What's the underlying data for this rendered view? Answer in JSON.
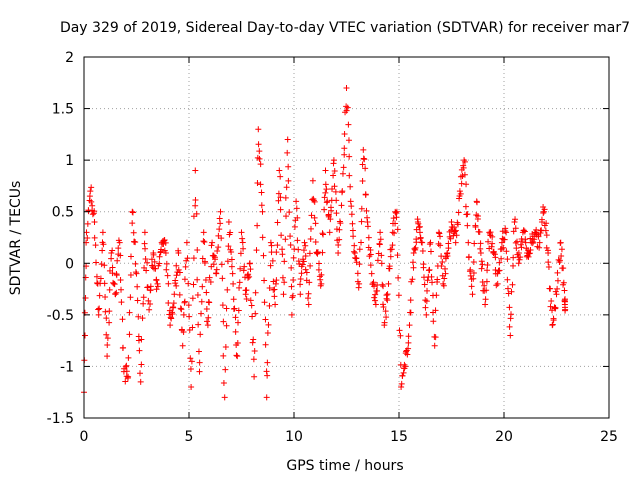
{
  "chart_data": {
    "type": "scatter",
    "title": "Day 329 of 2019, Sidereal Day-to-day VTEC variation (SDTVAR) for receiver mar7",
    "xlabel": "GPS time / hours",
    "ylabel": "SDTVAR / TECUs",
    "xlim": [
      0,
      25
    ],
    "ylim": [
      -1.5,
      2
    ],
    "xticks": [
      0,
      5,
      10,
      15,
      20,
      25
    ],
    "yticks": [
      -1.5,
      -1,
      -0.5,
      0,
      0.5,
      1,
      1.5,
      2
    ],
    "xtick_labels": [
      "0",
      "5",
      "10",
      "15",
      "20",
      "25"
    ],
    "ytick_labels": [
      "-1.5",
      "-1",
      "-0.5",
      "0",
      "0.5",
      "1",
      "1.5",
      "2"
    ],
    "grid": true,
    "marker": "+",
    "color": "#ff0000",
    "series": [
      {
        "name": "SDTVAR",
        "x": [
          0.0,
          0.1,
          0.3,
          0.5,
          0.7,
          0.9,
          1.1,
          1.3,
          1.5,
          1.7,
          1.9,
          2.1,
          2.3,
          2.5,
          2.7,
          2.9,
          3.1,
          3.3,
          3.5,
          3.7,
          3.9,
          4.1,
          4.3,
          4.5,
          4.7,
          4.9,
          5.1,
          5.3,
          5.5,
          5.7,
          5.9,
          6.1,
          6.3,
          6.5,
          6.7,
          6.9,
          7.1,
          7.3,
          7.5,
          7.7,
          7.9,
          8.1,
          8.3,
          8.5,
          8.7,
          8.9,
          9.1,
          9.3,
          9.5,
          9.7,
          9.9,
          10.1,
          10.3,
          10.5,
          10.7,
          10.9,
          11.1,
          11.3,
          11.5,
          11.7,
          11.9,
          12.1,
          12.3,
          12.5,
          12.7,
          12.9,
          13.1,
          13.3,
          13.5,
          13.7,
          13.9,
          14.1,
          14.3,
          14.5,
          14.7,
          14.9,
          15.1,
          15.3,
          15.5,
          15.7,
          15.9,
          16.1,
          16.3,
          16.5,
          16.7,
          16.9,
          17.1,
          17.3,
          17.5,
          17.7,
          17.9,
          18.1,
          18.3,
          18.5,
          18.7,
          18.9,
          19.1,
          19.3,
          19.5,
          19.7,
          19.9,
          20.1,
          20.3,
          20.5,
          20.7,
          20.9,
          21.1,
          21.3,
          21.5,
          21.7,
          21.9,
          22.1,
          22.3,
          22.5,
          22.7,
          22.9
        ],
        "y": [
          -1.25,
          0.2,
          0.7,
          0.4,
          -0.5,
          0.3,
          -0.9,
          0.1,
          -0.3,
          0.2,
          -1.05,
          -1.1,
          0.5,
          -0.1,
          -1.15,
          0.3,
          -0.45,
          0.1,
          -0.2,
          0.2,
          0.1,
          -0.6,
          -0.3,
          0.1,
          -0.8,
          0.2,
          -1.2,
          0.9,
          -1.05,
          0.3,
          -0.6,
          0.2,
          -0.1,
          0.5,
          -1.3,
          0.4,
          -0.2,
          -0.9,
          0.3,
          -0.3,
          0.0,
          -1.1,
          1.3,
          0.5,
          -1.3,
          0.2,
          -0.4,
          0.9,
          -0.3,
          1.2,
          -0.5,
          0.6,
          -0.3,
          0.2,
          -0.4,
          0.8,
          0.1,
          -0.2,
          0.9,
          0.3,
          1.0,
          0.1,
          0.7,
          1.7,
          0.6,
          0.1,
          -0.2,
          1.1,
          0.4,
          -0.1,
          -0.4,
          0.3,
          -0.6,
          -0.2,
          0.3,
          0.5,
          -1.2,
          -1.0,
          -0.6,
          0.1,
          0.4,
          0.2,
          -0.5,
          0.2,
          -0.8,
          0.3,
          -0.2,
          0.1,
          0.4,
          0.2,
          0.7,
          1.0,
          0.2,
          -0.3,
          0.6,
          0.1,
          -0.4,
          0.3,
          0.1,
          -0.2,
          0.2,
          0.3,
          -0.7,
          0.4,
          0.0,
          0.3,
          0.1,
          0.2,
          0.3,
          0.2,
          0.5,
          0.1,
          -0.6,
          -0.3,
          0.2,
          -0.4
        ]
      }
    ]
  }
}
